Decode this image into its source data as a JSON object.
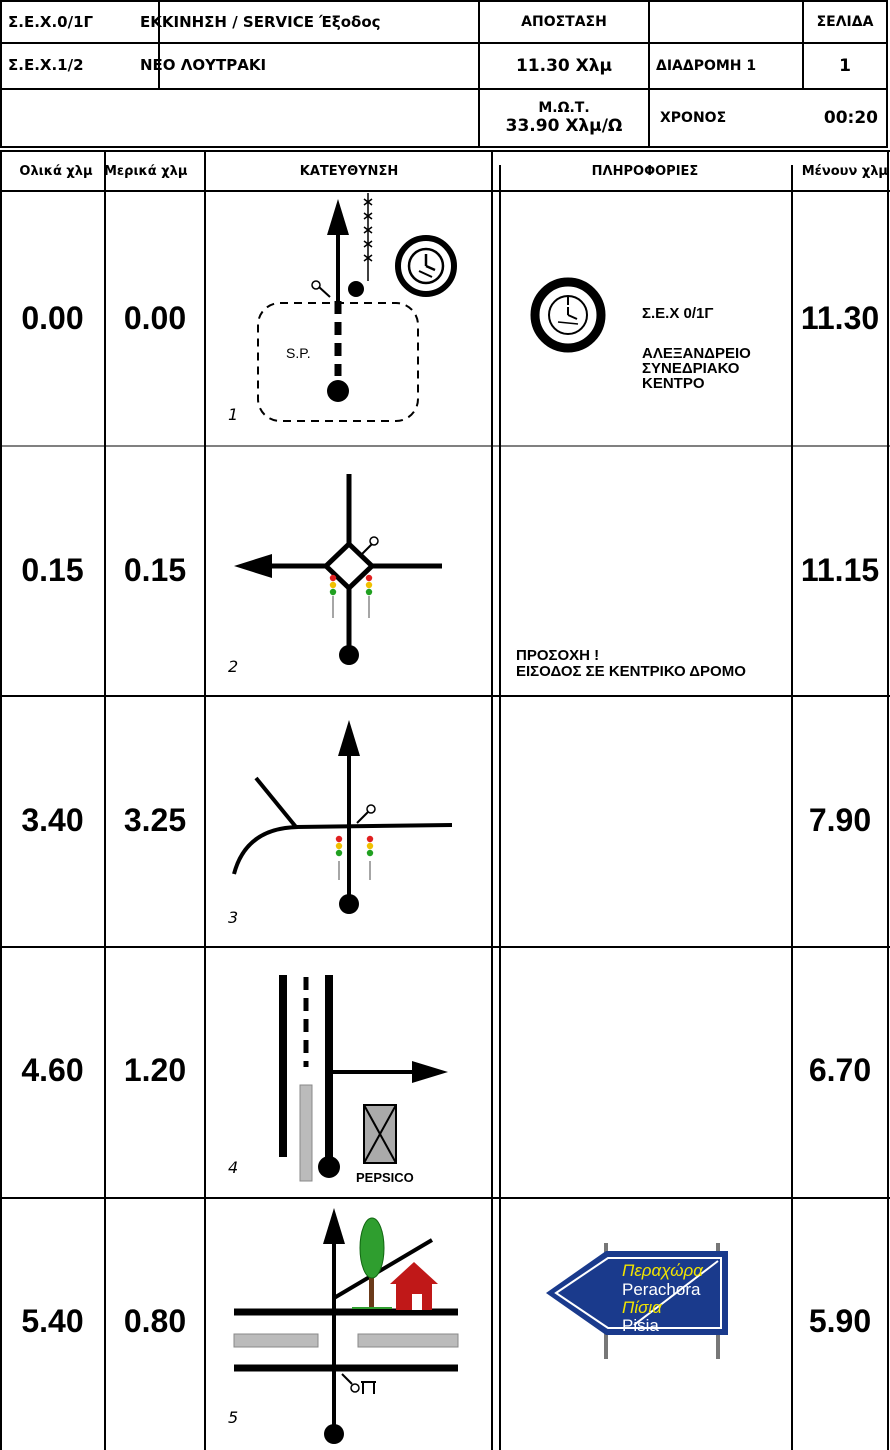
{
  "header": {
    "stage_code_1": "Σ.Ε.Χ.0/1Γ",
    "stage_title_1": "ΕΚΚΙΝΗΣΗ / SERVICE Έξοδος",
    "stage_code_2": "Σ.Ε.Χ.1/2",
    "stage_title_2": "ΝΕΟ ΛΟΥΤΡΑΚΙ",
    "distance_label": "ΑΠΟΣΤΑΣΗ",
    "distance_value": "11.30 Χλμ",
    "page_label": "ΣΕΛΙΔΑ",
    "page_value": "1",
    "route_label": "ΔΙΑΔΡΟΜΗ 1",
    "avg_speed_label": "Μ.Ω.Τ.",
    "avg_speed_value": "33.90 Χλμ/Ω",
    "time_label": "ΧΡΟΝΟΣ",
    "time_value": "00:20"
  },
  "columns": {
    "total_km": "Ολικά χλμ",
    "partial_km": "Μερικά χλμ",
    "direction": "ΚΑΤΕΥΘΥΝΣΗ",
    "info": "ΠΛΗΡΟΦΟΡΙΕΣ",
    "remaining_km": "Μένουν χλμ"
  },
  "rows": [
    {
      "total": "0.00",
      "partial": "0.00",
      "step": "1",
      "remaining": "11.30",
      "info_code": "Σ.Ε.Χ 0/1Γ",
      "info_lines": [
        "ΑΛΕΞΑΝΔΡΕΙΟ",
        "ΣΥΝΕΔΡΙΑΚΟ",
        "ΚΕΝΤΡΟ"
      ],
      "diagram_label": "S.P."
    },
    {
      "total": "0.15",
      "partial": "0.15",
      "step": "2",
      "remaining": "11.15",
      "info_lines": [
        "ΠΡΟΣΟΧΗ !",
        "ΕΙΣΟΔΟΣ ΣΕ ΚΕΝΤΡΙΚΟ ΔΡΟΜΟ"
      ]
    },
    {
      "total": "3.40",
      "partial": "3.25",
      "step": "3",
      "remaining": "7.90"
    },
    {
      "total": "4.60",
      "partial": "1.20",
      "step": "4",
      "remaining": "6.70",
      "diagram_label": "PEPSICO"
    },
    {
      "total": "5.40",
      "partial": "0.80",
      "step": "5",
      "remaining": "5.90",
      "sign_lines": [
        "Περαχώρα",
        "Perachora",
        "Πίσια",
        "Pisia"
      ],
      "sign_color": "#1a3a8c",
      "sign_greek_color": "#f2e400"
    }
  ]
}
